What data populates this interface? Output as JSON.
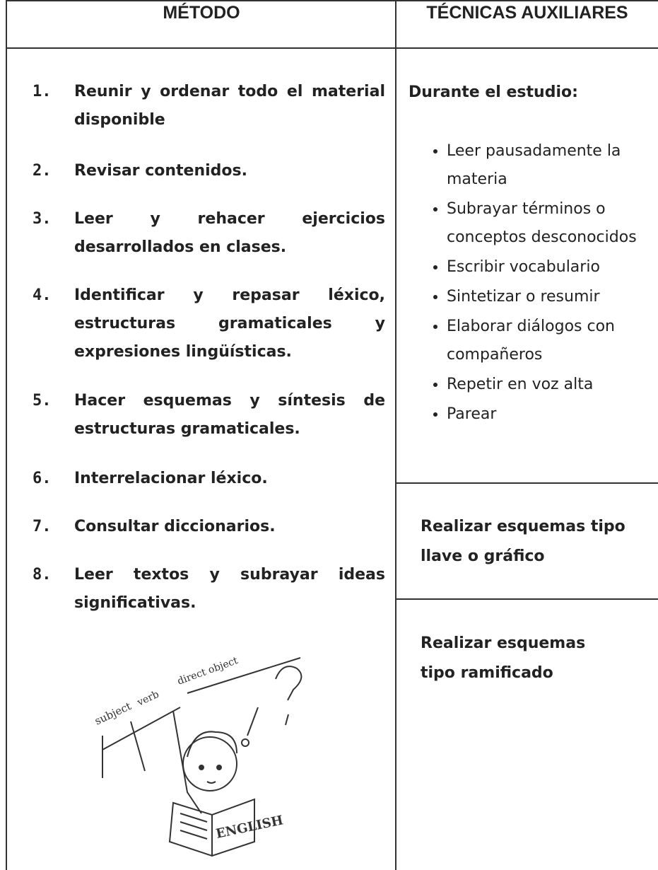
{
  "header": {
    "col1": "MÉTODO",
    "col2": "TÉCNICAS AUXILIARES"
  },
  "metodo": {
    "items": [
      {
        "number": "1.",
        "text": "Reunir y ordenar todo el material disponible"
      },
      {
        "number": "2.",
        "text": "Revisar contenidos."
      },
      {
        "number": "3.",
        "text": "Leer y rehacer ejercicios desarrollados en clases."
      },
      {
        "number": "4.",
        "text": "Identificar y repasar léxico, estructuras gramaticales y expresiones lingüísticas."
      },
      {
        "number": "5.",
        "text": "Hacer esquemas y síntesis de estructuras gramaticales."
      },
      {
        "number": "6.",
        "text": "Interrelacionar léxico."
      },
      {
        "number": "7.",
        "text": "Consultar diccionarios."
      },
      {
        "number": "8.",
        "text": "Leer textos y subrayar ideas significativas."
      }
    ]
  },
  "tecnicas": {
    "durante": {
      "title": "Durante el estudio:",
      "bullets": [
        "Leer pausadamente la materia",
        "Subrayar términos o conceptos desconocidos",
        "Escribir vocabulario",
        "Sintetizar o resumir",
        "Elaborar diálogos con compañeros",
        "Repetir en voz alta",
        "Parear"
      ]
    },
    "llave": "Realizar esquemas tipo llave o gráfico",
    "ramificado": "Realizar esquemas tipo ramificado"
  },
  "illustration": {
    "labels": [
      "subject",
      "verb",
      "direct object",
      "ENGLISH"
    ]
  }
}
